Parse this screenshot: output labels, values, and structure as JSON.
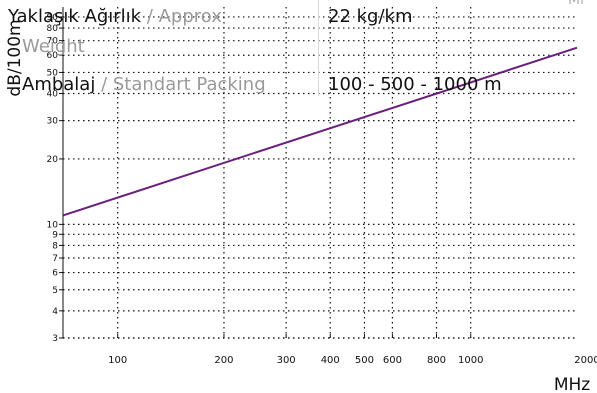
{
  "table": {
    "weight_label_primary": "Yaklaşık Ağırlık",
    "weight_label_secondary": " / Approx",
    "weight_label_continued": "Weight",
    "weight_value": "22 kg/km",
    "packing_label_primary": "Ambalaj",
    "packing_label_secondary": " / Standart Packing",
    "packing_value": "100 - 500 - 1000 m",
    "corner_fragment": "Mi"
  },
  "chart_data": {
    "type": "line",
    "xlabel": "MHz",
    "ylabel": "dB/100m",
    "x_scale": "log",
    "y_scale": "log",
    "xlim": [
      70,
      2000
    ],
    "ylim": [
      3,
      100
    ],
    "x_ticks": [
      100,
      200,
      300,
      400,
      500,
      600,
      800,
      1000,
      2000
    ],
    "x_tick_labels": [
      "100",
      "200",
      "300",
      "400",
      "500",
      "600",
      "800",
      "1000",
      "2000"
    ],
    "y_ticks": [
      3,
      4,
      5,
      6,
      7,
      8,
      9,
      10,
      20,
      30,
      40,
      50,
      60,
      70,
      80,
      90
    ],
    "y_tick_labels": [
      "3",
      "4",
      "5",
      "6",
      "7",
      "8",
      "9",
      "10",
      "20",
      "30",
      "40",
      "50",
      "60",
      "70",
      "80",
      "90"
    ],
    "grid": true,
    "series": [
      {
        "color": "#6b1f7c",
        "x": [
          70,
          2000
        ],
        "y": [
          11,
          65
        ]
      }
    ]
  }
}
